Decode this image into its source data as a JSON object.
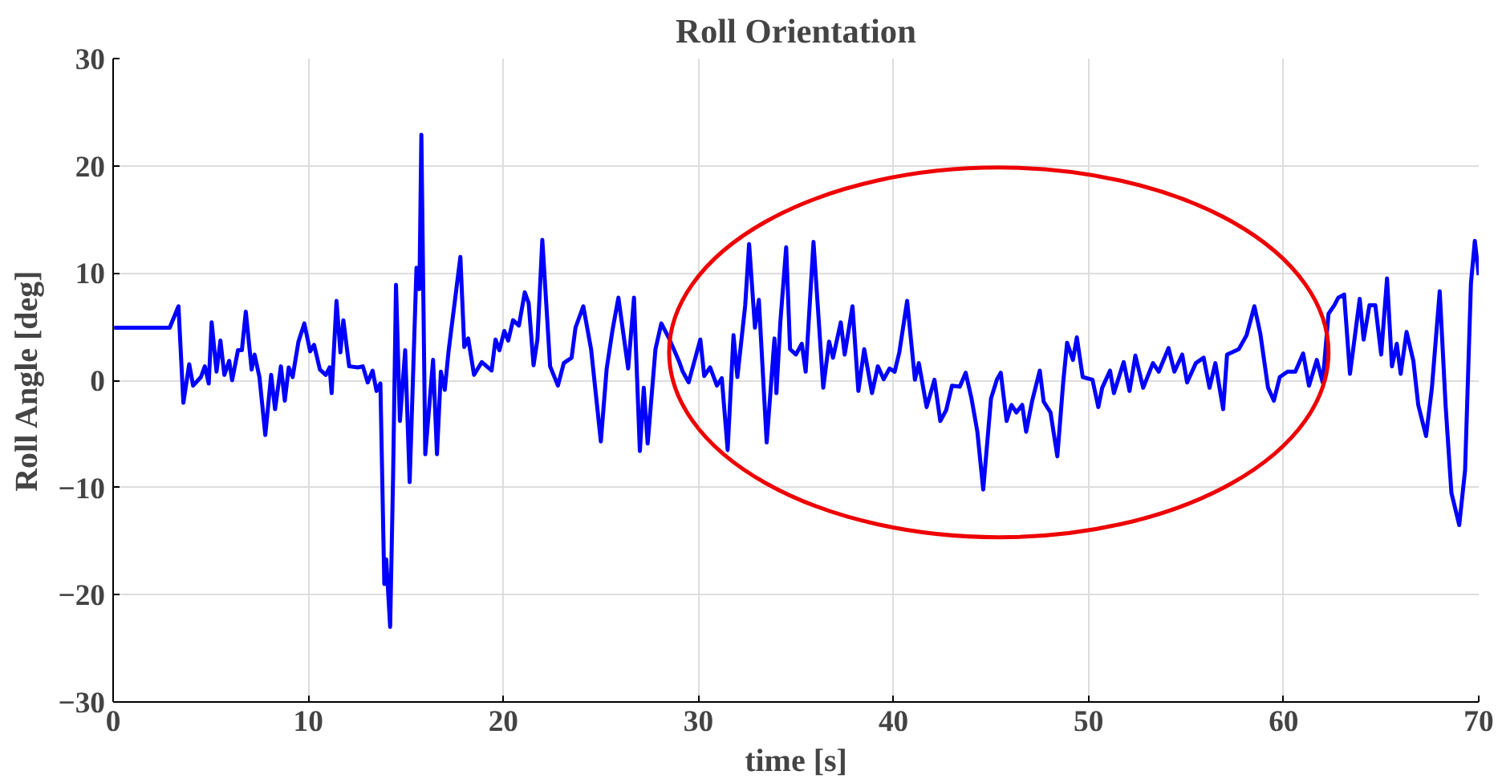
{
  "chart_data": {
    "type": "line",
    "title": "Roll Orientation",
    "xlabel": "time [s]",
    "ylabel": "Roll Angle [deg]",
    "xlim": [
      0,
      70
    ],
    "ylim": [
      -30,
      30
    ],
    "xticks": [
      0,
      10,
      20,
      30,
      40,
      50,
      60,
      70
    ],
    "yticks": [
      -30,
      -20,
      -10,
      0,
      10,
      20,
      30
    ],
    "grid": true,
    "line_style": "solid",
    "series": [
      {
        "color": "#0000ff",
        "x": [
          0.05,
          2.9,
          3.35,
          3.6,
          3.9,
          4.1,
          4.5,
          4.7,
          4.9,
          5.05,
          5.3,
          5.5,
          5.7,
          5.95,
          6.1,
          6.4,
          6.6,
          6.8,
          7.1,
          7.25,
          7.5,
          7.8,
          8.1,
          8.3,
          8.6,
          8.8,
          9.0,
          9.2,
          9.5,
          9.8,
          10.1,
          10.3,
          10.6,
          10.9,
          11.1,
          11.2,
          11.45,
          11.65,
          11.8,
          12.1,
          12.55,
          12.8,
          13.05,
          13.3,
          13.5,
          13.7,
          13.9,
          14.0,
          14.2,
          14.35,
          14.5,
          14.7,
          14.97,
          15.2,
          15.55,
          15.7,
          15.8,
          16.0,
          16.4,
          16.6,
          16.8,
          17.0,
          17.2,
          17.8,
          18.0,
          18.2,
          18.5,
          18.9,
          19.4,
          19.6,
          19.8,
          20.05,
          20.25,
          20.5,
          20.8,
          21.1,
          21.3,
          21.55,
          21.75,
          22.0,
          22.4,
          22.8,
          23.1,
          23.5,
          23.7,
          24.1,
          24.5,
          25.0,
          25.3,
          25.6,
          25.9,
          26.4,
          26.7,
          27.0,
          27.2,
          27.4,
          27.8,
          28.1,
          28.5,
          29.0,
          29.2,
          29.5,
          30.1,
          30.3,
          30.6,
          30.95,
          31.2,
          31.5,
          31.8,
          32.0,
          32.4,
          32.6,
          32.9,
          33.1,
          33.5,
          33.9,
          34.0,
          34.2,
          34.5,
          34.7,
          35.0,
          35.3,
          35.5,
          35.9,
          36.4,
          36.7,
          36.9,
          37.3,
          37.5,
          37.9,
          38.2,
          38.5,
          38.9,
          39.2,
          39.5,
          39.8,
          40.06,
          40.3,
          40.7,
          41.1,
          41.3,
          41.7,
          42.1,
          42.4,
          42.7,
          43.0,
          43.4,
          43.7,
          44.0,
          44.3,
          44.6,
          45.0,
          45.3,
          45.5,
          45.8,
          46.05,
          46.3,
          46.6,
          46.8,
          47.1,
          47.5,
          47.7,
          48.05,
          48.4,
          48.7,
          48.9,
          49.2,
          49.4,
          49.7,
          50.2,
          50.5,
          50.7,
          51.1,
          51.3,
          51.8,
          52.1,
          52.4,
          52.8,
          53.3,
          53.6,
          54.1,
          54.4,
          54.8,
          55.05,
          55.5,
          55.9,
          56.2,
          56.5,
          56.9,
          57.1,
          57.7,
          58.1,
          58.5,
          58.8,
          59.2,
          59.5,
          59.8,
          60.2,
          60.6,
          61.0,
          61.3,
          61.7,
          62.0,
          62.3,
          62.6,
          62.8,
          63.1,
          63.4,
          63.6,
          63.9,
          64.1,
          64.4,
          64.7,
          65.0,
          65.3,
          65.55,
          65.8,
          66.0,
          66.3,
          66.65,
          66.9,
          67.3,
          67.6,
          68.0,
          68.3,
          68.6,
          69.0,
          69.3,
          69.6,
          69.8,
          70.0
        ],
        "values": [
          4.9,
          4.9,
          6.9,
          -2.1,
          1.5,
          -0.5,
          0.3,
          1.3,
          -0.3,
          5.4,
          0.8,
          3.7,
          0.5,
          1.8,
          0.0,
          2.8,
          2.8,
          6.4,
          1.0,
          2.4,
          0.3,
          -5.1,
          0.5,
          -2.7,
          1.3,
          -1.9,
          1.2,
          0.3,
          3.6,
          5.3,
          2.7,
          3.3,
          1.0,
          0.5,
          1.2,
          -1.2,
          7.4,
          2.6,
          5.6,
          1.3,
          1.2,
          1.3,
          -0.2,
          0.9,
          -1.0,
          -0.3,
          -19.0,
          -16.7,
          -23.0,
          -9.0,
          8.9,
          -3.8,
          2.8,
          -9.5,
          10.5,
          8.5,
          22.9,
          -6.9,
          1.9,
          -6.9,
          0.8,
          -0.9,
          2.8,
          11.5,
          3.1,
          3.9,
          0.5,
          1.7,
          0.9,
          3.8,
          2.8,
          4.6,
          3.7,
          5.6,
          5.1,
          8.2,
          7.2,
          1.4,
          3.8,
          13.1,
          1.3,
          -0.5,
          1.6,
          2.1,
          4.9,
          6.9,
          2.9,
          -5.7,
          1.1,
          4.7,
          7.7,
          1.1,
          7.7,
          -6.6,
          -0.7,
          -5.9,
          2.9,
          5.3,
          3.9,
          1.8,
          0.8,
          -0.2,
          3.8,
          0.4,
          1.2,
          -0.5,
          0.2,
          -6.5,
          4.2,
          0.3,
          7.0,
          12.7,
          4.9,
          7.5,
          -5.8,
          3.9,
          -1.2,
          5.4,
          12.4,
          2.9,
          2.4,
          3.4,
          0.8,
          12.9,
          -0.7,
          3.6,
          2.1,
          5.4,
          2.4,
          6.9,
          -1.0,
          2.9,
          -1.2,
          1.3,
          0.1,
          1.1,
          0.8,
          2.6,
          7.4,
          0.05,
          1.6,
          -2.5,
          0.05,
          -3.8,
          -2.8,
          -0.5,
          -0.6,
          0.7,
          -1.7,
          -4.8,
          -10.2,
          -1.7,
          0.05,
          0.7,
          -3.8,
          -2.3,
          -3.0,
          -2.3,
          -4.8,
          -2.0,
          0.9,
          -2.0,
          -3.0,
          -7.1,
          -0.2,
          3.5,
          1.9,
          4.0,
          0.3,
          0.05,
          -2.5,
          -0.7,
          0.9,
          -1.2,
          1.7,
          -1.0,
          2.3,
          -0.7,
          1.6,
          0.8,
          3.0,
          0.8,
          2.4,
          -0.2,
          1.6,
          2.1,
          -0.7,
          1.6,
          -2.7,
          2.4,
          2.9,
          4.2,
          6.9,
          4.4,
          -0.7,
          -1.9,
          0.3,
          0.8,
          0.8,
          2.5,
          -0.5,
          1.9,
          -0.2,
          6.2,
          7.0,
          7.7,
          8.0,
          0.6,
          3.4,
          7.6,
          3.8,
          7.0,
          7.0,
          2.4,
          9.5,
          1.3,
          3.4,
          0.6,
          4.5,
          1.8,
          -2.3,
          -5.2,
          -0.7,
          8.3,
          -2.3,
          -10.5,
          -13.5,
          -8.4,
          9.0,
          13.0,
          9.8
        ]
      }
    ]
  }
}
